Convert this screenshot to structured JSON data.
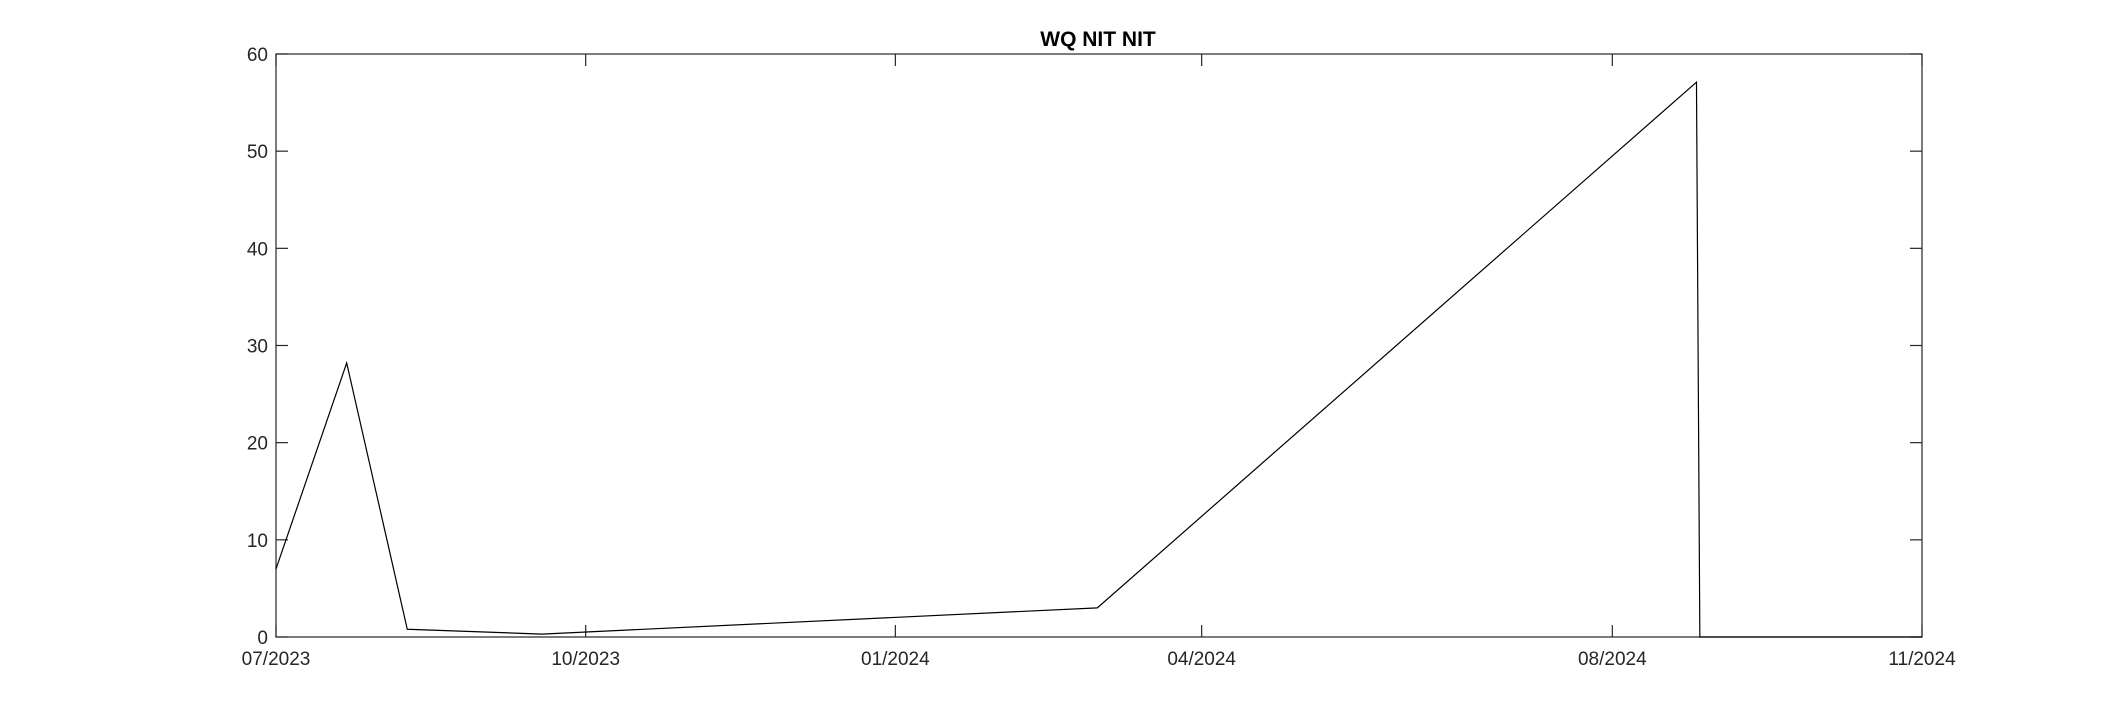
{
  "chart_data": {
    "type": "line",
    "title": "WQ NIT NIT",
    "xlabel": "",
    "ylabel": "",
    "xlim": [
      "2023-07-01",
      "2024-11-01"
    ],
    "ylim": [
      0,
      60
    ],
    "x_ticks": [
      {
        "date": "2023-07-01",
        "label": "07/2023"
      },
      {
        "date": "2023-10-01",
        "label": "10/2023"
      },
      {
        "date": "2024-01-01",
        "label": "01/2024"
      },
      {
        "date": "2024-04-01",
        "label": "04/2024"
      },
      {
        "date": "2024-08-01",
        "label": "08/2024"
      },
      {
        "date": "2024-11-01",
        "label": "11/2024"
      }
    ],
    "y_ticks": [
      0,
      10,
      20,
      30,
      40,
      50,
      60
    ],
    "grid": false,
    "legend": "none",
    "series": [
      {
        "color": "#000000",
        "x": [
          "2023-07-01",
          "2023-07-22",
          "2023-08-09",
          "2023-09-18",
          "2024-03-01",
          "2024-08-26",
          "2024-08-27",
          "2024-11-01"
        ],
        "y": [
          7,
          28.2,
          0.8,
          0.3,
          3.0,
          57.1,
          0,
          0
        ]
      }
    ]
  }
}
